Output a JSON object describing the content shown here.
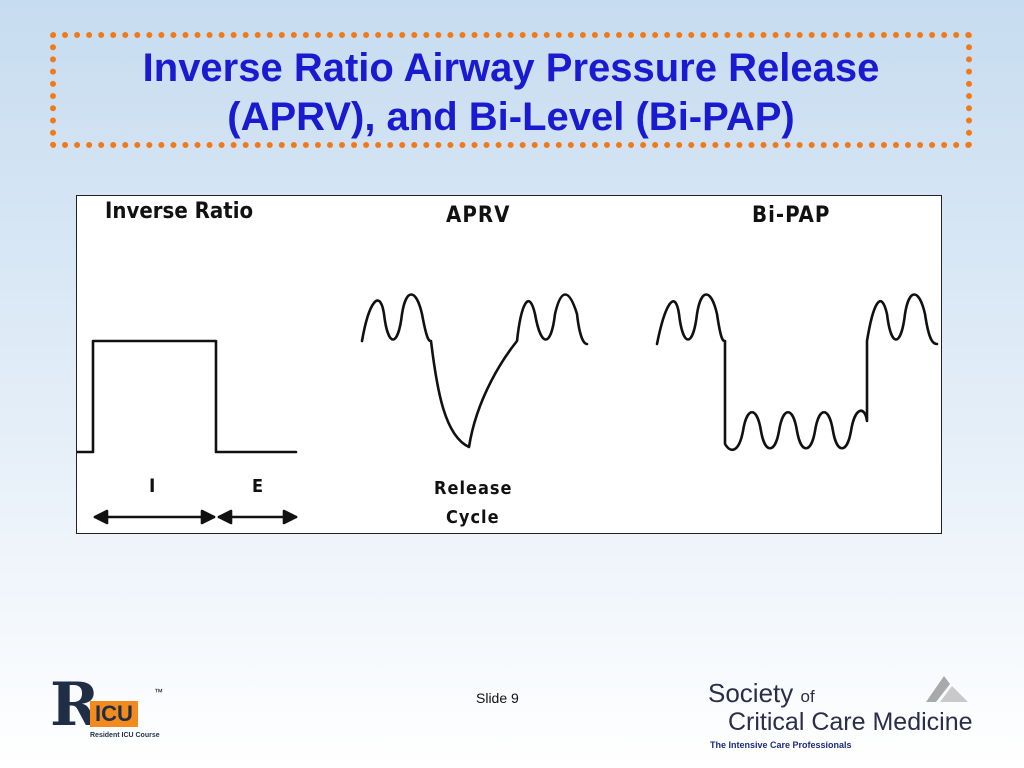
{
  "title": {
    "line1": "Inverse Ratio Airway Pressure Release",
    "line2": "(APRV), and Bi-Level (Bi-PAP)"
  },
  "figure": {
    "panels": {
      "inverse_ratio": "Inverse   Ratio",
      "aprv": "APRV",
      "bipap": "Bi-PAP"
    },
    "labels": {
      "i": "I",
      "e": "E",
      "release_line1": "Release",
      "release_line2": "Cycle"
    }
  },
  "footer": {
    "slide": "Slide 9",
    "ricu": {
      "r": "R",
      "icu": "ICU",
      "subtitle": "Resident ICU Course",
      "tm": "™"
    },
    "sccm": {
      "society": "Society",
      "of": "of",
      "name": "Critical Care Medicine",
      "tagline": "The Intensive Care Professionals"
    }
  },
  "colors": {
    "title": "#1a1ad0",
    "border": "#f07a1a"
  }
}
